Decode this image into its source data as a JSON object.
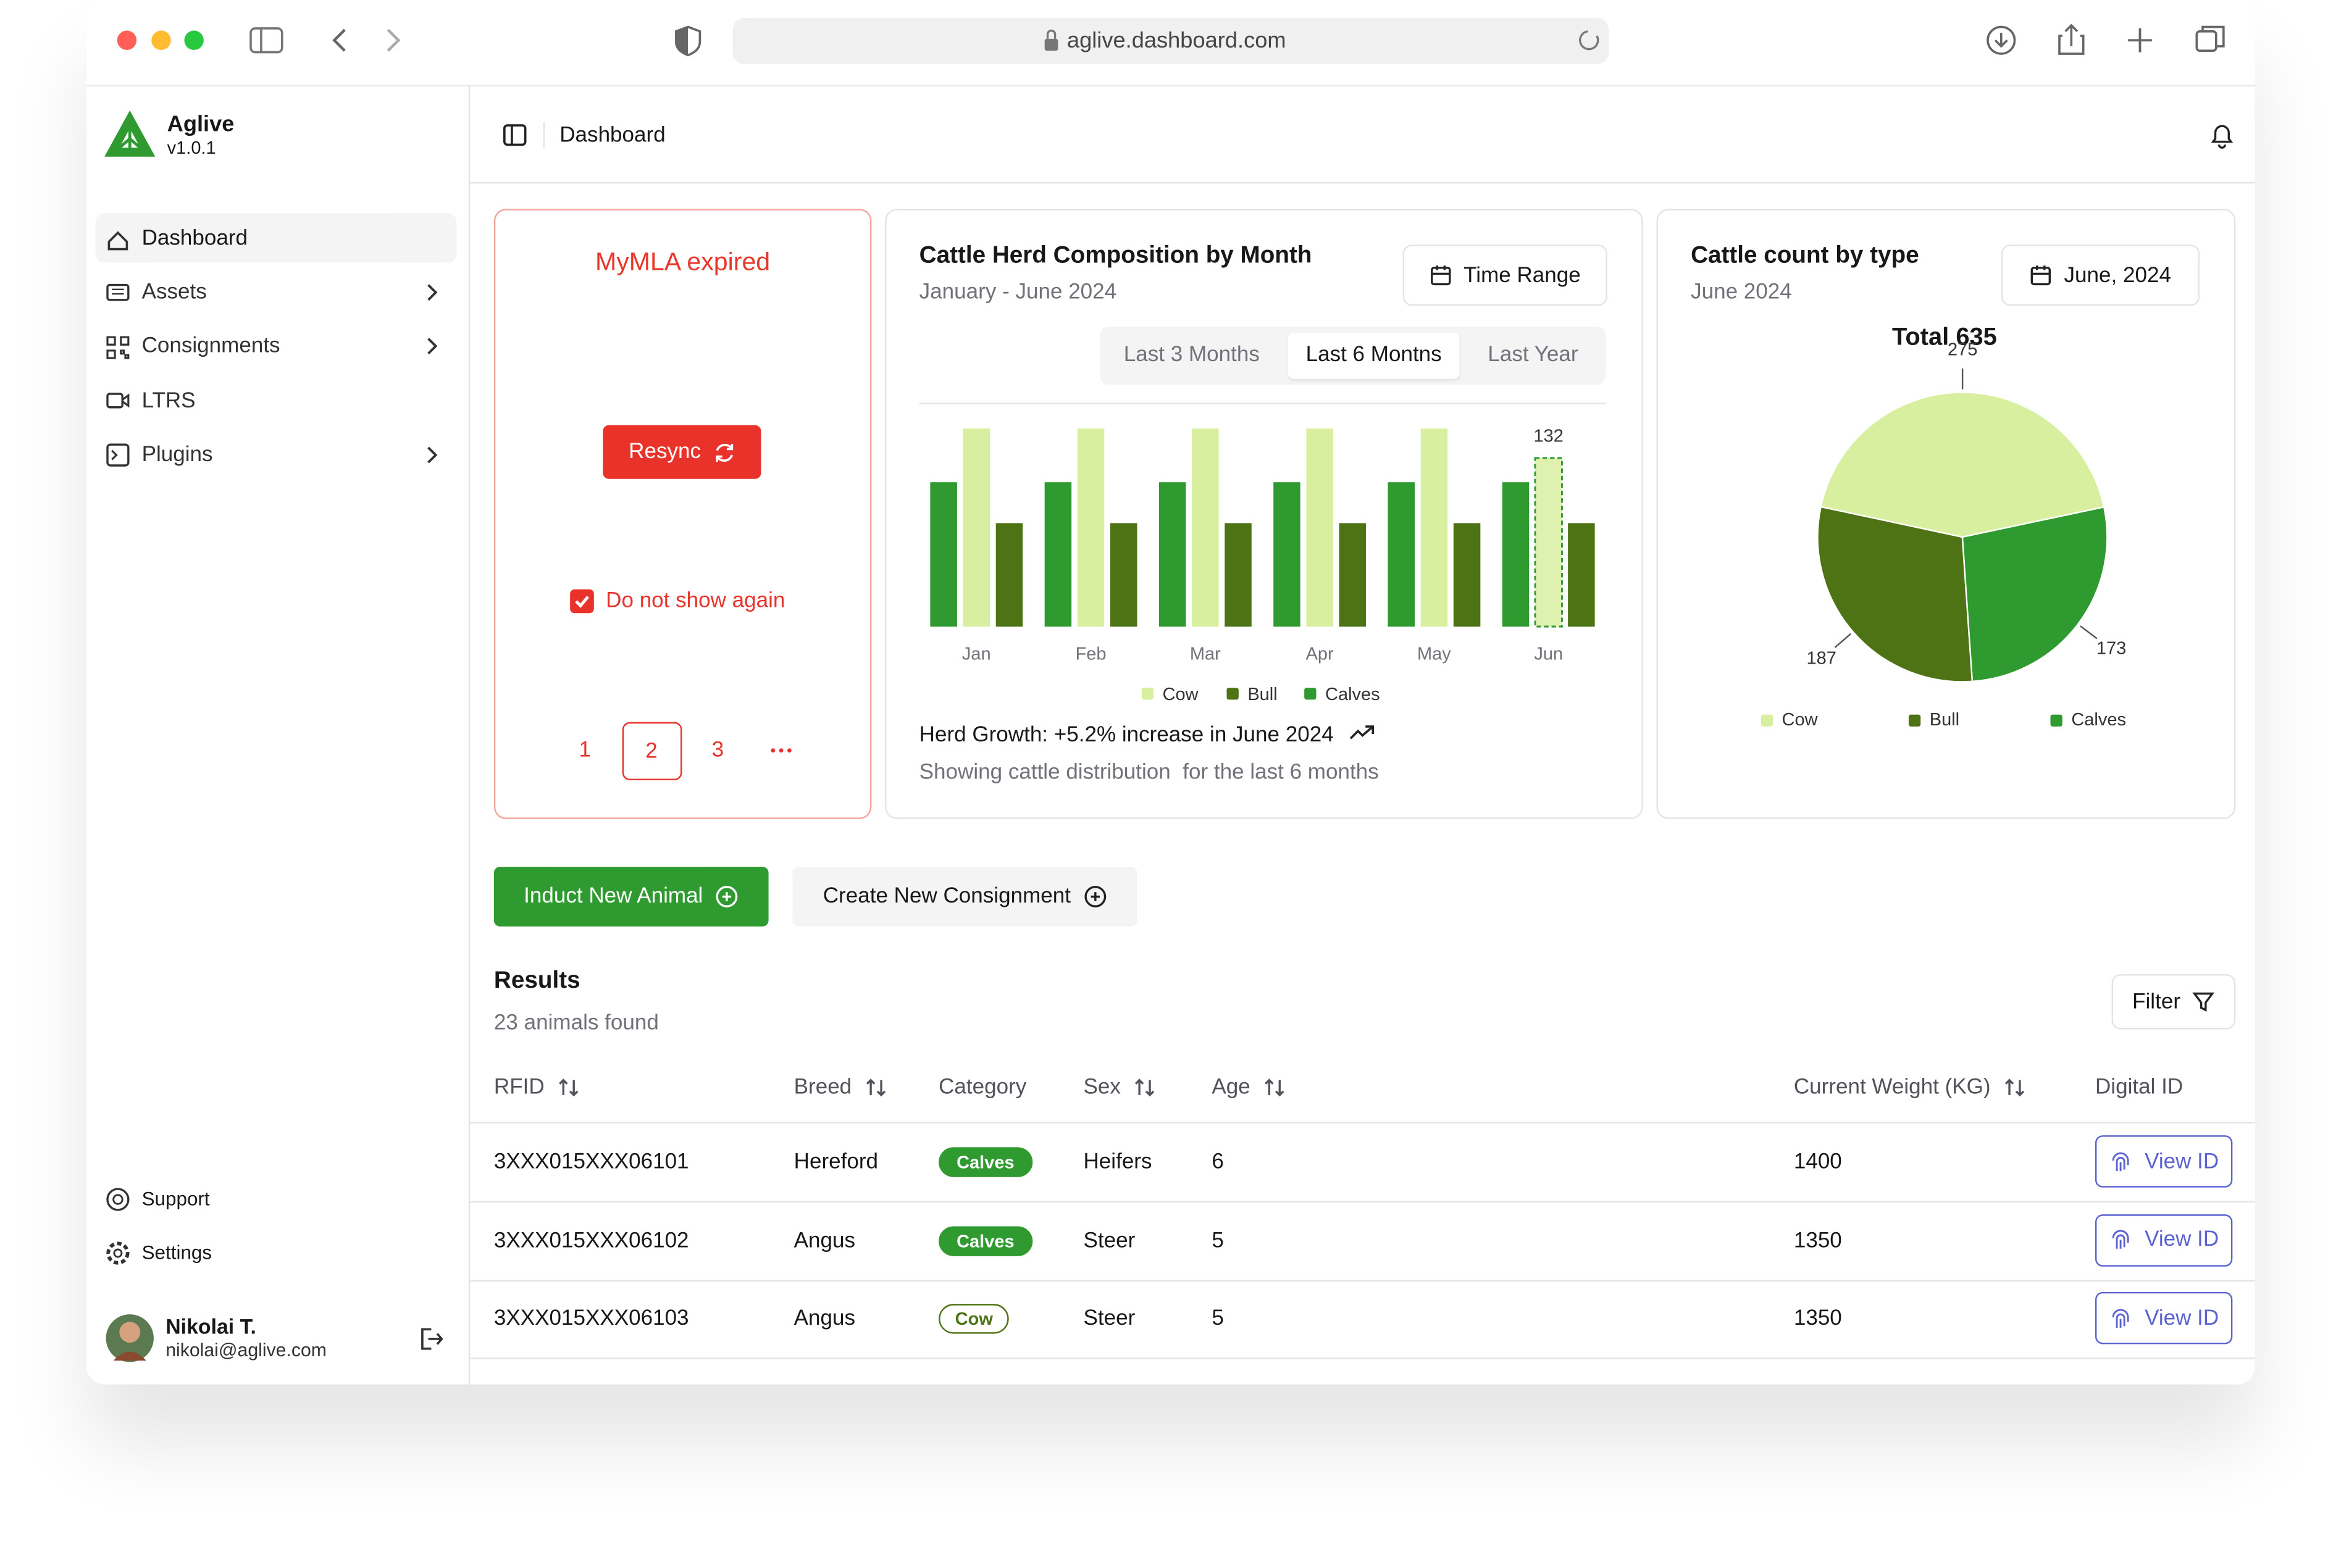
{
  "browser": {
    "url": "aglive.dashboard.com"
  },
  "sidebar": {
    "app_name": "Aglive",
    "version": "v1.0.1",
    "nav": [
      "Dashboard",
      "Assets",
      "Consignments",
      "LTRS",
      "Plugins"
    ],
    "footer_nav": [
      "Support",
      "Settings"
    ],
    "user": {
      "name": "Nikolai T.",
      "email": "nikolai@aglive.com"
    }
  },
  "header": {
    "breadcrumb": "Dashboard"
  },
  "alert_card": {
    "title": "MyMLA expired",
    "button": "Resync",
    "checkbox": "Do not show again",
    "pages": [
      "1",
      "2",
      "3"
    ],
    "active_page": 1
  },
  "chart_data": [
    {
      "type": "bar",
      "title": "Cattle Herd Composition by Month",
      "subtitle": "January - June 2024",
      "button": "Time Range",
      "tabs": [
        "Last 3 Months",
        "Last 6 Montns",
        "Last Year"
      ],
      "active_tab": 1,
      "categories": [
        "Jan",
        "Feb",
        "Mar",
        "Apr",
        "May",
        "Jun"
      ],
      "series": [
        {
          "name": "Cow",
          "color": "#d9efa0",
          "values": [
            155,
            155,
            155,
            155,
            155,
            132
          ]
        },
        {
          "name": "Bull",
          "color": "#4d7314",
          "values": [
            81,
            81,
            81,
            81,
            81,
            81
          ]
        },
        {
          "name": "Calves",
          "color": "#2f9a30",
          "values": [
            113,
            113,
            113,
            113,
            113,
            113
          ]
        }
      ],
      "ylim": [
        0,
        160
      ],
      "highlight": {
        "series": 0,
        "index": 5
      },
      "footer": "Herd Growth: +5.2% increase in June 2024",
      "footer_note": "Showing cattle distribution  for the last 6 months"
    },
    {
      "type": "pie",
      "title": "Cattle count by type",
      "subtitle": "June 2024",
      "button": "June, 2024",
      "total_label": "Total 635",
      "categories": [
        "Cow",
        "Bull",
        "Calves"
      ],
      "values": [
        275,
        187,
        173
      ],
      "colors": [
        "#d9efa0",
        "#4d7314",
        "#2f9a30"
      ]
    }
  ],
  "actions": [
    "Induct New Animal",
    "Create New Consignment"
  ],
  "results": {
    "title": "Results",
    "subtitle": "23 animals found",
    "filter": "Filter"
  },
  "table": {
    "columns": [
      "RFID",
      "Breed",
      "Category",
      "Sex",
      "Age",
      "Current Weight (KG)",
      "Digital ID"
    ],
    "sortable": [
      true,
      true,
      false,
      true,
      true,
      true,
      false
    ],
    "rows": [
      [
        "3XXX015XXX06101",
        "Hereford",
        "Calves",
        "Heifers",
        "6",
        "1400",
        "View ID"
      ],
      [
        "3XXX015XXX06102",
        "Angus",
        "Calves",
        "Steer",
        "5",
        "1350",
        "View ID"
      ],
      [
        "3XXX015XXX06103",
        "Angus",
        "Cow",
        "Steer",
        "5",
        "1350",
        "View ID"
      ]
    ],
    "badge_outline": [
      false,
      false,
      true
    ]
  }
}
